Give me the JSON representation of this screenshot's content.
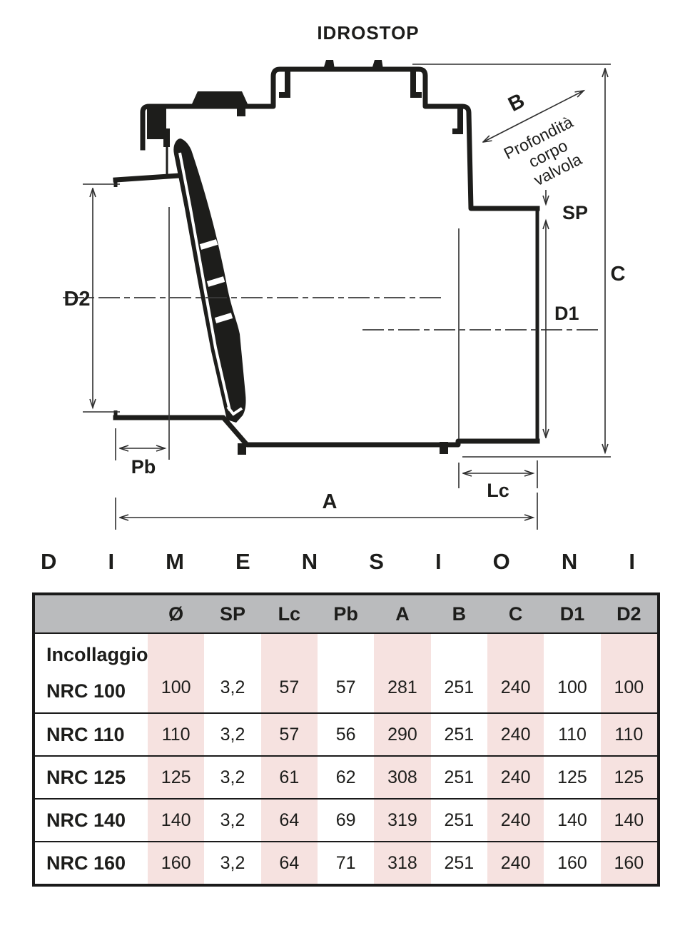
{
  "diagram": {
    "title": "IDROSTOP",
    "dim_b": "B",
    "profondita": [
      "Profondità",
      "corpo",
      "valvola"
    ],
    "dim_sp": "SP",
    "dim_c": "C",
    "dim_d1": "D1",
    "dim_d2": "D2",
    "dim_pb": "Pb",
    "dim_lc": "Lc",
    "dim_a": "A"
  },
  "section": {
    "title": "DIMENSIONI"
  },
  "table": {
    "headers": [
      "",
      "Ø",
      "SP",
      "Lc",
      "Pb",
      "A",
      "B",
      "C",
      "D1",
      "D2"
    ],
    "group_label": "Incollaggio",
    "striped_columns": [
      1,
      3,
      5,
      7,
      9
    ],
    "rows": [
      {
        "label": "NRC 100",
        "values": [
          "100",
          "3,2",
          "57",
          "57",
          "281",
          "251",
          "240",
          "100",
          "100"
        ]
      },
      {
        "label": "NRC 110",
        "values": [
          "110",
          "3,2",
          "57",
          "56",
          "290",
          "251",
          "240",
          "110",
          "110"
        ]
      },
      {
        "label": "NRC 125",
        "values": [
          "125",
          "3,2",
          "61",
          "62",
          "308",
          "251",
          "240",
          "125",
          "125"
        ]
      },
      {
        "label": "NRC 140",
        "values": [
          "140",
          "3,2",
          "64",
          "69",
          "319",
          "251",
          "240",
          "140",
          "140"
        ]
      },
      {
        "label": "NRC 160",
        "values": [
          "160",
          "3,2",
          "64",
          "71",
          "318",
          "251",
          "240",
          "160",
          "160"
        ]
      }
    ]
  },
  "colors": {
    "line": "#1d1d1b",
    "dim_line": "#2e2e2e",
    "header_bg": "#babbbd",
    "stripe": "#f6e2e0",
    "background": "#ffffff"
  }
}
